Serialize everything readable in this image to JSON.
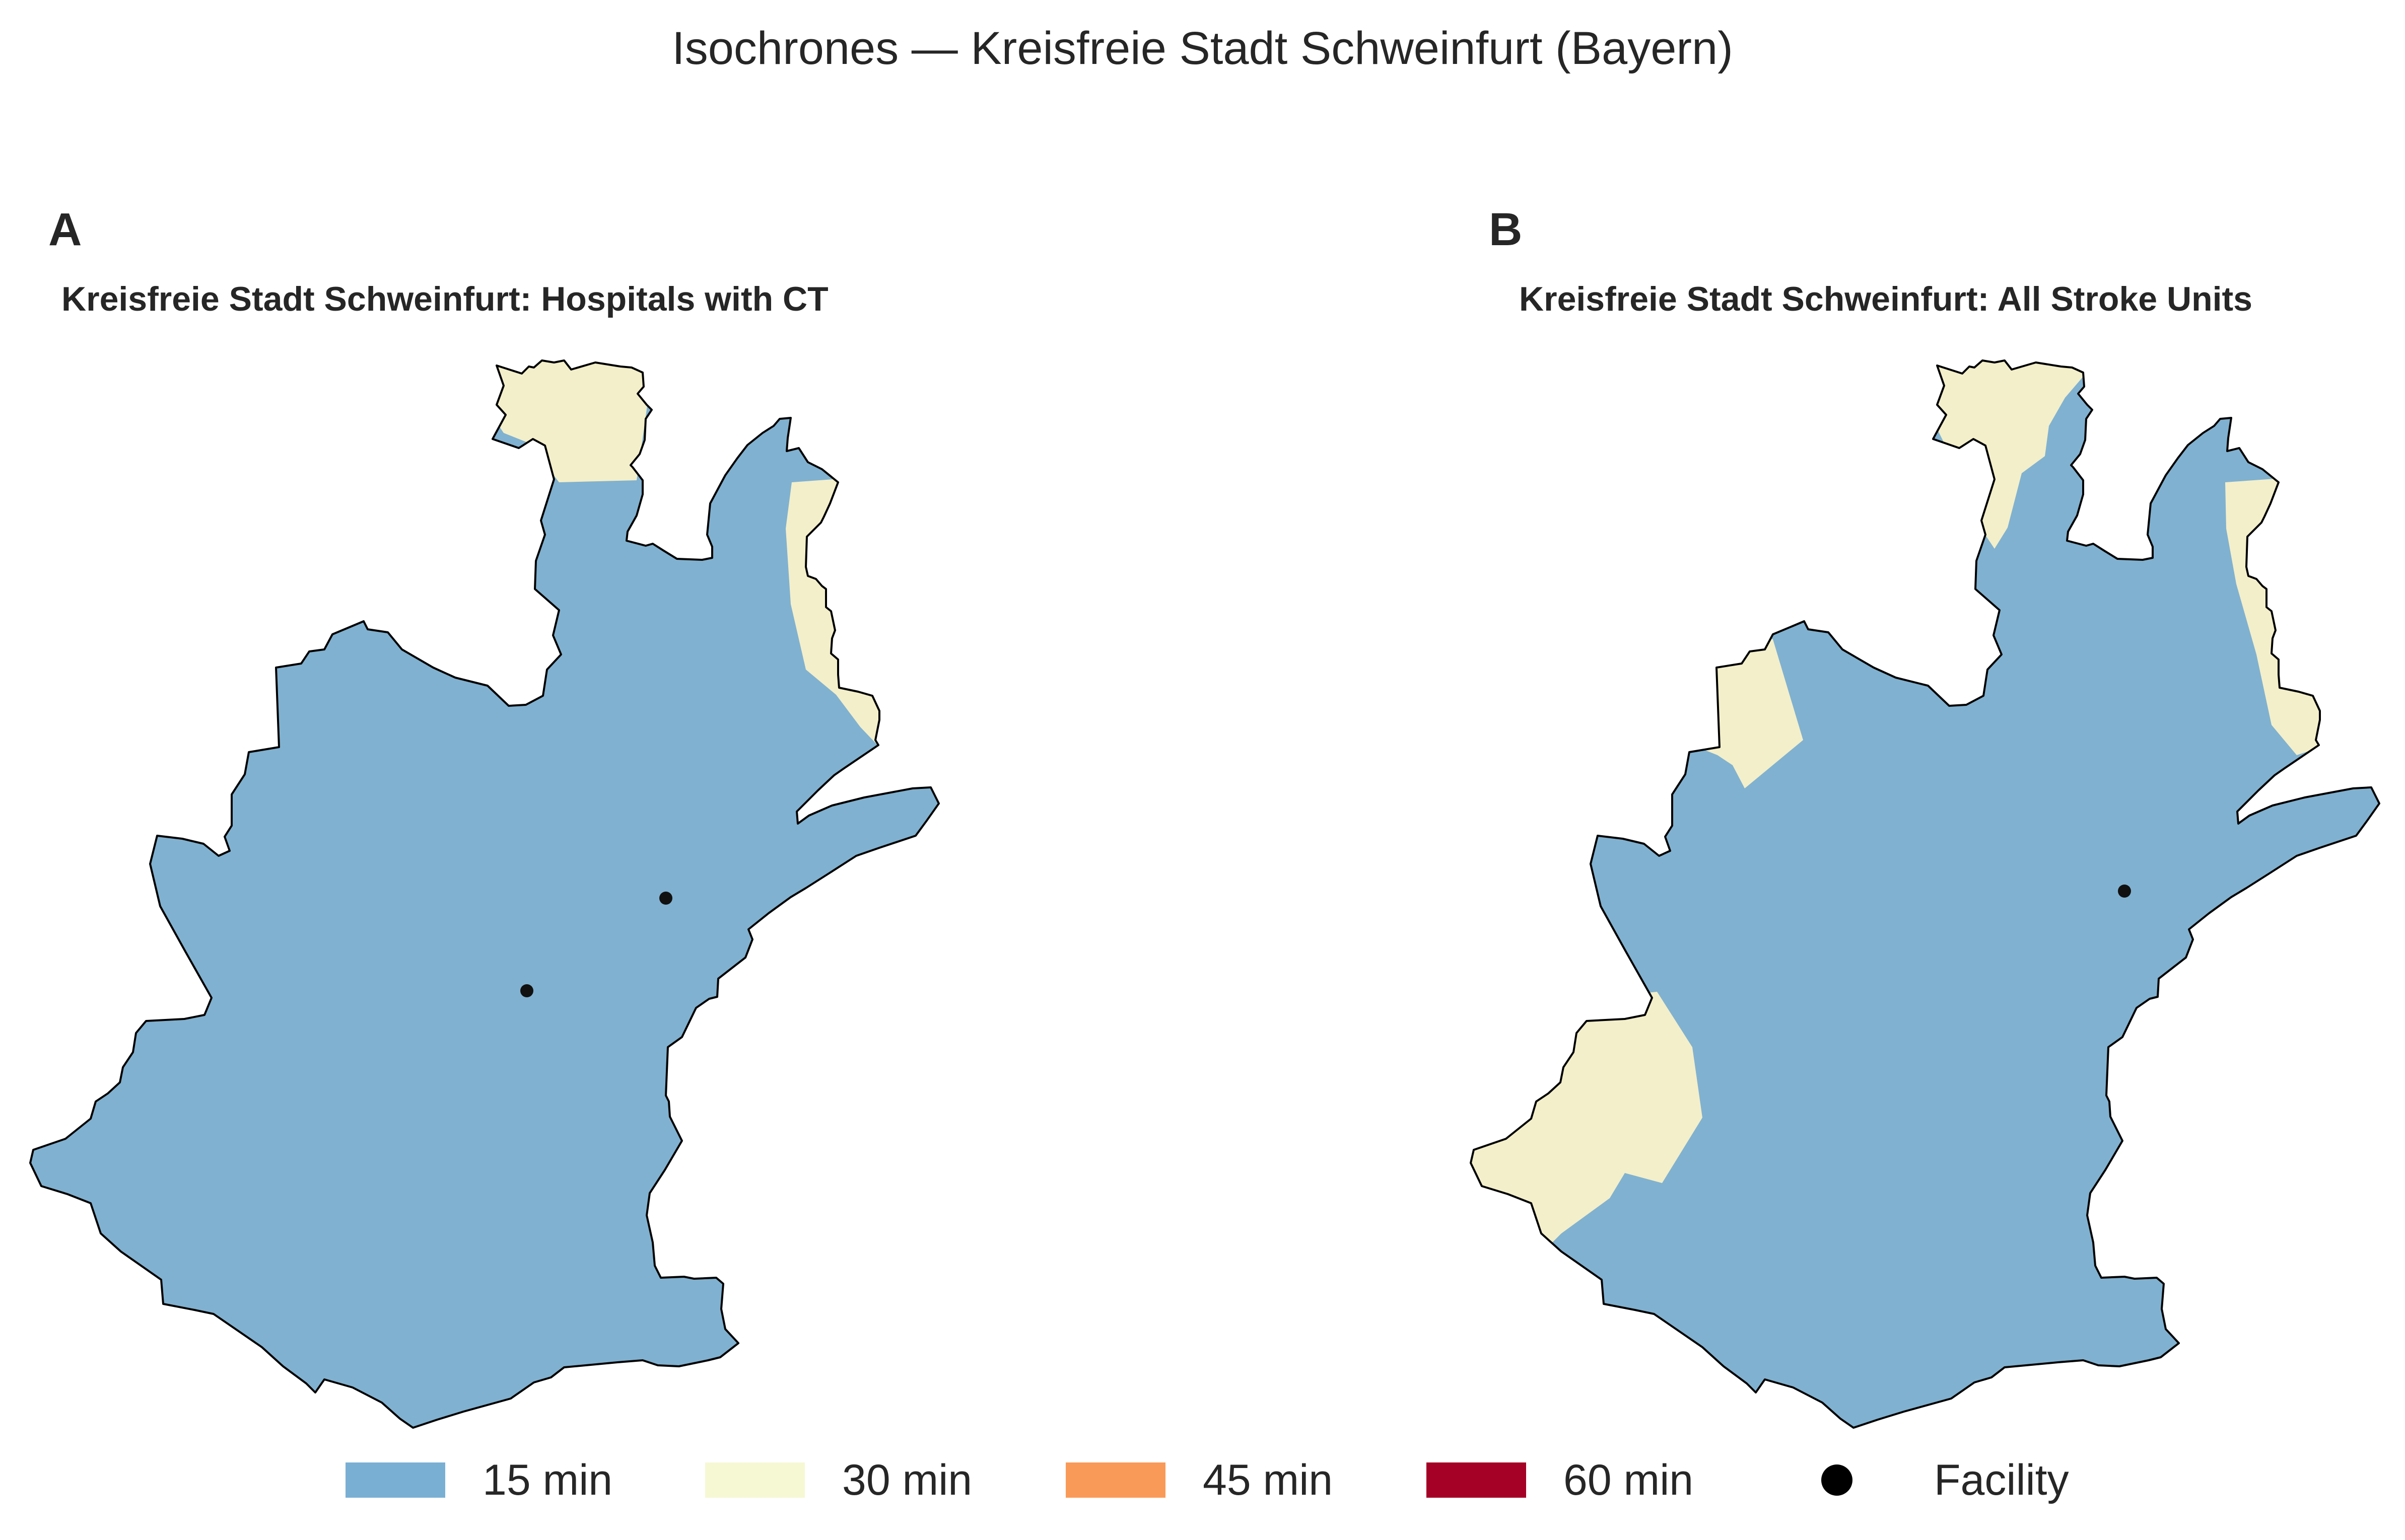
{
  "title": "Isochrones — Kreisfreie Stadt Schweinfurt (Bayern)",
  "colors": {
    "min15": "#80b1d0",
    "min30": "#f3efca",
    "outline": "#000000",
    "facility": "#111111"
  },
  "panels": [
    {
      "letter": "A",
      "title": "Kreisfreie Stadt Schweinfurt: Hospitals with CT",
      "facility_count": 2
    },
    {
      "letter": "B",
      "title": "Kreisfreie Stadt Schweinfurt: All Stroke Units",
      "facility_count": 1
    }
  ],
  "legend": [
    {
      "label": "15 min",
      "color": "#7aafd4",
      "kind": "patch"
    },
    {
      "label": "30 min",
      "color": "#f5f8d3",
      "kind": "patch"
    },
    {
      "label": "45 min",
      "color": "#fa9a58",
      "kind": "patch"
    },
    {
      "label": "60 min",
      "color": "#a50026",
      "kind": "patch"
    },
    {
      "label": "Facility",
      "color": "#000000",
      "kind": "marker"
    }
  ]
}
